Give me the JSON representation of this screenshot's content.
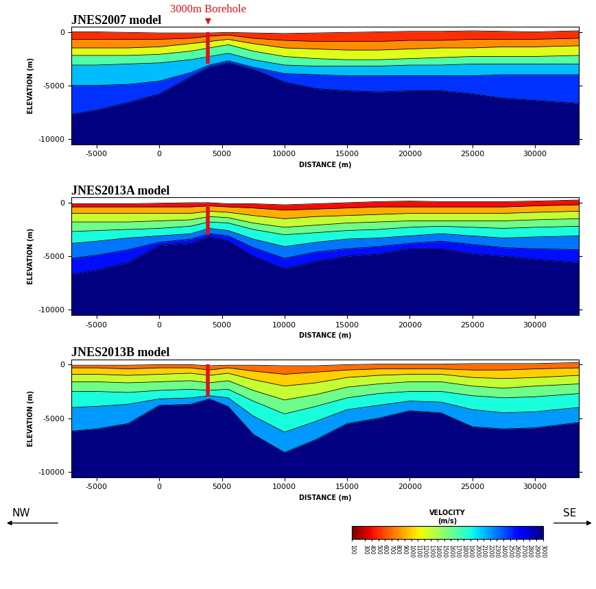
{
  "chart_data": [
    {
      "type": "area",
      "title": "JNES2007 model",
      "xlabel": "DISTANCE (m)",
      "ylabel": "ELEVATION (m)",
      "xlim": [
        -7000,
        33500
      ],
      "ylim": [
        -10500,
        500
      ],
      "xticks": [
        -5000,
        0,
        5000,
        10000,
        15000,
        20000,
        25000,
        30000
      ],
      "yticks": [
        -10000,
        -5000,
        0
      ],
      "x": [
        -7000,
        -5000,
        -2500,
        0,
        2500,
        4000,
        5500,
        7500,
        10000,
        12500,
        15000,
        17500,
        20000,
        22500,
        25000,
        27500,
        30000,
        33500
      ],
      "layers": [
        {
          "velocity": 500,
          "top": [
            0,
            0,
            -50,
            -100,
            -100,
            -100,
            -50,
            -100,
            -150,
            -100,
            -50,
            0,
            50,
            50,
            100,
            50,
            0,
            100
          ]
        },
        {
          "velocity": 800,
          "top": [
            -700,
            -700,
            -700,
            -700,
            -600,
            -400,
            -300,
            -600,
            -800,
            -900,
            -900,
            -900,
            -800,
            -800,
            -700,
            -700,
            -700,
            -600
          ]
        },
        {
          "velocity": 1200,
          "top": [
            -1500,
            -1500,
            -1500,
            -1400,
            -1100,
            -900,
            -700,
            -1100,
            -1500,
            -1600,
            -1700,
            -1700,
            -1600,
            -1500,
            -1500,
            -1400,
            -1400,
            -1300
          ]
        },
        {
          "velocity": 1700,
          "top": [
            -2200,
            -2200,
            -2200,
            -2100,
            -1800,
            -1500,
            -1200,
            -1800,
            -2300,
            -2500,
            -2600,
            -2600,
            -2500,
            -2400,
            -2300,
            -2300,
            -2300,
            -2200
          ]
        },
        {
          "velocity": 2100,
          "top": [
            -3100,
            -3100,
            -3000,
            -2900,
            -2600,
            -2300,
            -2000,
            -2600,
            -3100,
            -3200,
            -3200,
            -3200,
            -3100,
            -3100,
            -3000,
            -3000,
            -3000,
            -3000
          ]
        },
        {
          "velocity": 2500,
          "top": [
            -5000,
            -5000,
            -4900,
            -4600,
            -3800,
            -3100,
            -2700,
            -3300,
            -3900,
            -4000,
            -4100,
            -4100,
            -4100,
            -4100,
            -4100,
            -4000,
            -4000,
            -4000
          ]
        },
        {
          "velocity": 3000,
          "top": [
            -7700,
            -7300,
            -6600,
            -5800,
            -4200,
            -3300,
            -2900,
            -3500,
            -4700,
            -5300,
            -5500,
            -5600,
            -5500,
            -5500,
            -5800,
            -6200,
            -6400,
            -6700
          ]
        }
      ],
      "borehole": {
        "label": "3000m Borehole",
        "x": 3900,
        "top": 0,
        "bottom": -3000
      }
    },
    {
      "type": "area",
      "title": "JNES2013A model",
      "xlabel": "DISTANCE (m)",
      "ylabel": "ELEVATION (m)",
      "xlim": [
        -7000,
        33500
      ],
      "ylim": [
        -10500,
        500
      ],
      "xticks": [
        -5000,
        0,
        5000,
        10000,
        15000,
        20000,
        25000,
        30000
      ],
      "yticks": [
        -10000,
        -5000,
        0
      ],
      "x": [
        -7000,
        -5000,
        -2500,
        0,
        2500,
        4000,
        5500,
        7500,
        10000,
        12500,
        15000,
        17500,
        20000,
        22500,
        25000,
        27500,
        30000,
        33500
      ],
      "layers": [
        {
          "velocity": 400,
          "top": [
            -100,
            -100,
            -100,
            -50,
            0,
            0,
            -100,
            -100,
            -200,
            -100,
            0,
            100,
            150,
            100,
            100,
            100,
            150,
            250
          ]
        },
        {
          "velocity": 900,
          "top": [
            -400,
            -400,
            -400,
            -400,
            -400,
            -300,
            -400,
            -500,
            -700,
            -600,
            -500,
            -400,
            -400,
            -400,
            -400,
            -400,
            -300,
            -200
          ]
        },
        {
          "velocity": 1300,
          "top": [
            -1000,
            -1000,
            -1000,
            -1000,
            -1000,
            -800,
            -900,
            -1200,
            -1500,
            -1300,
            -1200,
            -1100,
            -1000,
            -1000,
            -1000,
            -1000,
            -900,
            -800
          ]
        },
        {
          "velocity": 1600,
          "top": [
            -1800,
            -1800,
            -1800,
            -1700,
            -1600,
            -1300,
            -1400,
            -1900,
            -2300,
            -2100,
            -1900,
            -1800,
            -1700,
            -1700,
            -1700,
            -1700,
            -1600,
            -1500
          ]
        },
        {
          "velocity": 1900,
          "top": [
            -2700,
            -2600,
            -2500,
            -2400,
            -2200,
            -1800,
            -1900,
            -2500,
            -3000,
            -2800,
            -2600,
            -2500,
            -2300,
            -2200,
            -2300,
            -2400,
            -2300,
            -2200
          ]
        },
        {
          "velocity": 2300,
          "top": [
            -3800,
            -3600,
            -3300,
            -3100,
            -2900,
            -2400,
            -2600,
            -3400,
            -4100,
            -3700,
            -3400,
            -3300,
            -3100,
            -2900,
            -3100,
            -3300,
            -3200,
            -3100
          ]
        },
        {
          "velocity": 2600,
          "top": [
            -5200,
            -4900,
            -4400,
            -3700,
            -3400,
            -2900,
            -3100,
            -4200,
            -5200,
            -4600,
            -4300,
            -4100,
            -3800,
            -3600,
            -3900,
            -4200,
            -4300,
            -4400
          ]
        },
        {
          "velocity": 3000,
          "top": [
            -6700,
            -6300,
            -5600,
            -4000,
            -3800,
            -3200,
            -3600,
            -5000,
            -6200,
            -5500,
            -5000,
            -4800,
            -4300,
            -4300,
            -4800,
            -5000,
            -5300,
            -5600
          ]
        }
      ],
      "borehole": {
        "x": 3900,
        "top": 0,
        "bottom": -3000
      }
    },
    {
      "type": "area",
      "title": "JNES2013B model",
      "xlabel": "DISTANCE (m)",
      "ylabel": "ELEVATION (m)",
      "xlim": [
        -7000,
        33500
      ],
      "ylim": [
        -10500,
        500
      ],
      "xticks": [
        -5000,
        0,
        5000,
        10000,
        15000,
        20000,
        25000,
        30000
      ],
      "yticks": [
        -10000,
        -5000,
        0
      ],
      "x": [
        -7000,
        -5000,
        -2500,
        0,
        2500,
        4000,
        5500,
        7500,
        10000,
        12500,
        15000,
        17500,
        20000,
        22500,
        25000,
        27500,
        30000,
        33500
      ],
      "layers": [
        {
          "velocity": 700,
          "top": [
            -50,
            -50,
            -50,
            0,
            0,
            -100,
            -50,
            -50,
            -100,
            -100,
            0,
            50,
            50,
            50,
            100,
            100,
            100,
            200
          ]
        },
        {
          "velocity": 1000,
          "top": [
            -300,
            -300,
            -400,
            -300,
            -300,
            -500,
            -300,
            -600,
            -900,
            -700,
            -500,
            -400,
            -400,
            -400,
            -500,
            -500,
            -400,
            -300
          ]
        },
        {
          "velocity": 1300,
          "top": [
            -900,
            -900,
            -1000,
            -900,
            -800,
            -1000,
            -800,
            -1400,
            -2000,
            -1700,
            -1200,
            -1000,
            -900,
            -900,
            -1200,
            -1300,
            -1200,
            -1000
          ]
        },
        {
          "velocity": 1600,
          "top": [
            -1600,
            -1600,
            -1700,
            -1600,
            -1500,
            -1700,
            -1500,
            -2400,
            -3300,
            -2800,
            -2100,
            -1800,
            -1600,
            -1600,
            -2000,
            -2200,
            -2000,
            -1800
          ]
        },
        {
          "velocity": 1900,
          "top": [
            -2500,
            -2500,
            -2600,
            -2400,
            -2300,
            -2400,
            -2300,
            -3400,
            -4600,
            -3900,
            -3100,
            -2700,
            -2500,
            -2500,
            -2900,
            -3100,
            -3000,
            -2700
          ]
        },
        {
          "velocity": 2200,
          "top": [
            -4000,
            -3900,
            -3700,
            -3200,
            -3100,
            -2900,
            -3100,
            -4800,
            -6300,
            -5300,
            -4200,
            -3800,
            -3400,
            -3500,
            -4200,
            -4500,
            -4400,
            -4000
          ]
        },
        {
          "velocity": 3000,
          "top": [
            -6200,
            -6000,
            -5500,
            -3800,
            -3700,
            -3200,
            -3900,
            -6500,
            -8200,
            -7000,
            -5500,
            -5000,
            -4300,
            -4500,
            -5800,
            -6000,
            -5900,
            -5400
          ]
        }
      ],
      "borehole": {
        "x": 3900,
        "top": 0,
        "bottom": -3000
      },
      "annotations": [
        "NW",
        "SE"
      ],
      "colorbar": {
        "label": "VELOCITY\n(m/s)",
        "range": [
          100,
          3000
        ],
        "ticks": [
          100,
          300,
          400,
          500,
          600,
          700,
          800,
          900,
          1000,
          1100,
          1200,
          1300,
          1400,
          1500,
          1600,
          1700,
          1800,
          1900,
          2000,
          2100,
          2200,
          2300,
          2400,
          2500,
          2600,
          2700,
          2800,
          2900,
          3000
        ]
      }
    }
  ]
}
